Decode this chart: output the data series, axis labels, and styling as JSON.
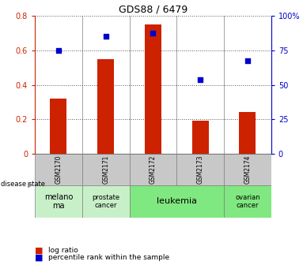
{
  "title": "GDS88 / 6479",
  "samples": [
    "GSM2170",
    "GSM2171",
    "GSM2172",
    "GSM2173",
    "GSM2174"
  ],
  "log_ratio": [
    0.32,
    0.55,
    0.75,
    0.19,
    0.24
  ],
  "percentile_right": [
    75.0,
    85.0,
    87.5,
    54.0,
    67.5
  ],
  "ylim_left": [
    0,
    0.8
  ],
  "ylim_right": [
    0,
    100
  ],
  "yticks_left": [
    0,
    0.2,
    0.4,
    0.6,
    0.8
  ],
  "yticks_right": [
    0,
    25,
    50,
    75,
    100
  ],
  "bar_color": "#cc2200",
  "dot_color": "#0000cc",
  "bar_width": 0.35,
  "disease_groups": [
    {
      "label": "melano\nma",
      "start": 0,
      "end": 1,
      "color": "#c8f0c8",
      "fontsize": 7
    },
    {
      "label": "prostate\ncancer",
      "start": 1,
      "end": 2,
      "color": "#c8f0c8",
      "fontsize": 6
    },
    {
      "label": "leukemia",
      "start": 2,
      "end": 4,
      "color": "#80e880",
      "fontsize": 8
    },
    {
      "label": "ovarian\ncancer",
      "start": 4,
      "end": 5,
      "color": "#80e880",
      "fontsize": 6
    }
  ],
  "legend_log_ratio": "log ratio",
  "legend_percentile": "percentile rank within the sample",
  "disease_state_label": "disease state",
  "table_row1_color": "#c8c8c8",
  "dotted_line_color": "#555555",
  "axis_left_color": "#cc2200",
  "axis_right_color": "#0000cc"
}
